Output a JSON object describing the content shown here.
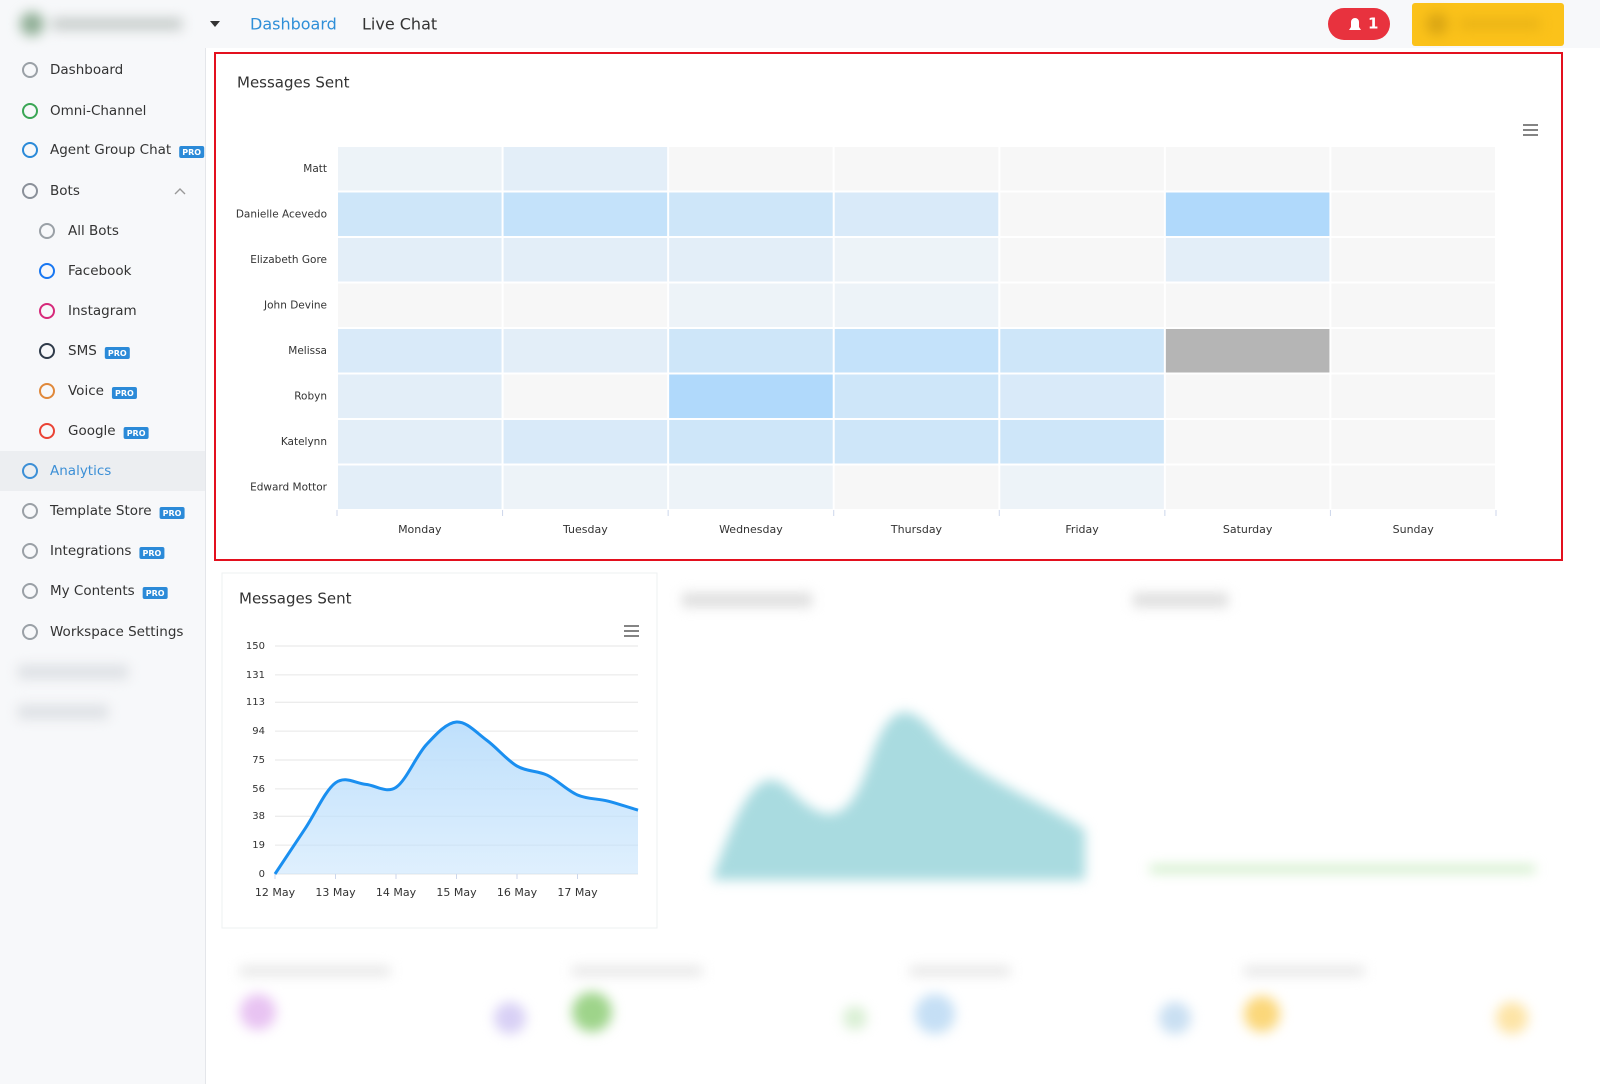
{
  "nav": {
    "links": [
      "Dashboard",
      "Live Chat"
    ],
    "notification_count": 1
  },
  "sidebar": {
    "items": [
      {
        "label": "Dashboard",
        "sub": false,
        "icon": "#9aa0a6"
      },
      {
        "label": "Omni-Channel",
        "sub": false,
        "icon": "#3aa655"
      },
      {
        "label": "Agent Group Chat",
        "badge": "PRO",
        "sub": false,
        "icon": "#2b8ad8"
      },
      {
        "label": "Bots",
        "sub": false,
        "icon": "#8a9099",
        "expanded": true
      },
      {
        "label": "All Bots",
        "sub": true,
        "icon": "#9aa0a6"
      },
      {
        "label": "Facebook",
        "sub": true,
        "icon": "#1877f2"
      },
      {
        "label": "Instagram",
        "sub": true,
        "icon": "#d6297a"
      },
      {
        "label": "SMS",
        "badge": "PRO",
        "sub": true,
        "icon": "#2f3b4a"
      },
      {
        "label": "Voice",
        "badge": "PRO",
        "sub": true,
        "icon": "#e0883a"
      },
      {
        "label": "Google",
        "badge": "PRO",
        "sub": true,
        "icon": "#ea4335"
      },
      {
        "label": "Analytics",
        "sub": false,
        "icon": "#3c8fd6",
        "active": true
      },
      {
        "label": "Template Store",
        "badge": "PRO",
        "sub": false,
        "icon": "#9aa0a6"
      },
      {
        "label": "Integrations",
        "badge": "PRO",
        "sub": false,
        "icon": "#9aa0a6"
      },
      {
        "label": "My Contents",
        "badge": "PRO",
        "sub": false,
        "icon": "#9aa0a6"
      },
      {
        "label": "Workspace Settings",
        "sub": false,
        "icon": "#9aa0a6"
      }
    ]
  },
  "chart_data": [
    {
      "type": "heatmap",
      "title": "Messages Sent",
      "categories": [
        "Monday",
        "Tuesday",
        "Wednesday",
        "Thursday",
        "Friday",
        "Saturday",
        "Sunday"
      ],
      "rows": [
        "Matt",
        "Danielle Acevedo",
        "Elizabeth Gore",
        "John Devine",
        "Melissa",
        "Robyn",
        "Katelynn",
        "Edward Mottor"
      ],
      "values": [
        [
          1,
          2,
          0,
          0,
          0,
          0,
          0
        ],
        [
          4,
          5,
          4,
          3,
          0,
          7,
          0
        ],
        [
          2,
          2,
          2,
          1,
          0,
          2,
          0
        ],
        [
          0,
          0,
          1,
          1,
          0,
          0,
          0
        ],
        [
          3,
          2,
          4,
          5,
          4,
          6,
          0
        ],
        [
          2,
          0,
          7,
          4,
          3,
          0,
          0
        ],
        [
          2,
          3,
          4,
          4,
          4,
          0,
          0
        ],
        [
          2,
          1,
          1,
          0,
          1,
          0,
          0
        ]
      ],
      "color_min": "#f7f7f7",
      "color_max": "#b0d9fb",
      "hover": [
        4,
        5
      ],
      "hover_color": "#b5b5b5"
    },
    {
      "type": "area",
      "title": "Messages Sent",
      "x": [
        0,
        0.5,
        1,
        1.5,
        2,
        2.5,
        3,
        3.5,
        4,
        4.5,
        5,
        5.5,
        6
      ],
      "values": [
        0,
        30,
        60,
        59,
        57,
        85,
        100,
        88,
        71,
        65,
        52,
        48,
        42
      ],
      "color": "#1a8ff0",
      "fill": "#bfe0fc",
      "xlim": [
        0,
        6
      ],
      "xticks": [
        {
          "value": 0,
          "label": "12 May"
        },
        {
          "value": 1,
          "label": "13 May"
        },
        {
          "value": 2,
          "label": "14 May"
        },
        {
          "value": 3,
          "label": "15 May"
        },
        {
          "value": 4,
          "label": "16 May"
        },
        {
          "value": 5,
          "label": "17 May"
        }
      ],
      "ylim": [
        0,
        150
      ],
      "yticks": [
        0,
        19,
        38,
        56,
        75,
        94,
        113,
        131,
        150
      ],
      "grid": true
    }
  ]
}
